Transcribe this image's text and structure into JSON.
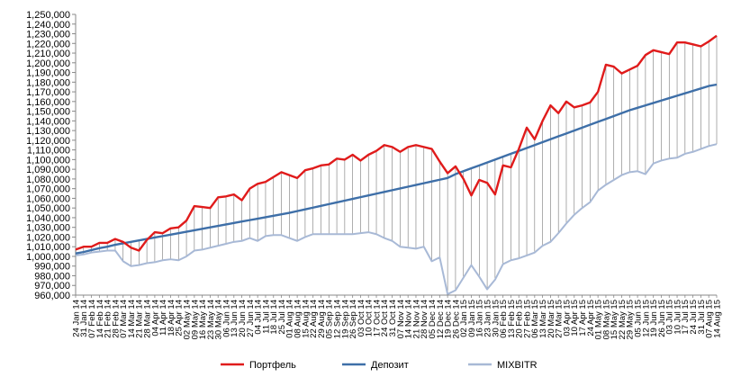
{
  "chart_data": {
    "type": "line",
    "title": "",
    "xlabel": "",
    "ylabel": "",
    "ylim": [
      960000,
      1250000
    ],
    "y_ticks": [
      "960,000",
      "970,000",
      "980,000",
      "990,000",
      "1,000,000",
      "1,010,000",
      "1,020,000",
      "1,030,000",
      "1,040,000",
      "1,050,000",
      "1,060,000",
      "1,070,000",
      "1,080,000",
      "1,090,000",
      "1,100,000",
      "1,110,000",
      "1,120,000",
      "1,130,000",
      "1,140,000",
      "1,150,000",
      "1,160,000",
      "1,170,000",
      "1,180,000",
      "1,190,000",
      "1,200,000",
      "1,210,000",
      "1,220,000",
      "1,230,000",
      "1,240,000",
      "1,250,000"
    ],
    "grid": "vertical drop lines",
    "legend_position": "bottom",
    "x": [
      "24 Jan 14",
      "31 Jan 14",
      "07 Feb 14",
      "14 Feb 14",
      "21 Feb 14",
      "28 Feb 14",
      "07 Mar 14",
      "14 Mar 14",
      "21 Mar 14",
      "28 Mar 14",
      "04 Apr 14",
      "11 Apr 14",
      "18 Apr 14",
      "25 Apr 14",
      "02 May 14",
      "09 May 14",
      "16 May 14",
      "23 May 14",
      "30 May 14",
      "06 Jun 14",
      "13 Jun 14",
      "20 Jun 14",
      "27 Jun 14",
      "04 Jul 14",
      "11 Jul 14",
      "18 Jul 14",
      "25 Jul 14",
      "01 Aug 14",
      "08 Aug 14",
      "15 Aug 14",
      "22 Aug 14",
      "29 Aug 14",
      "05 Sep 14",
      "12 Sep 14",
      "19 Sep 14",
      "26 Sep 14",
      "03 Oct 14",
      "10 Oct 14",
      "17 Oct 14",
      "24 Oct 14",
      "31 Oct 14",
      "07 Nov 14",
      "14 Nov 14",
      "21 Nov 14",
      "28 Nov 14",
      "05 Dec 14",
      "12 Dec 14",
      "19 Dec 14",
      "26 Dec 14",
      "02 Jan 15",
      "09 Jan 15",
      "16 Jan 15",
      "23 Jan 15",
      "30 Jan 15",
      "06 Feb 15",
      "13 Feb 15",
      "20 Feb 15",
      "27 Feb 15",
      "06 Mar 15",
      "13 Mar 15",
      "20 Mar 15",
      "27 Mar 15",
      "03 Apr 15",
      "10 Apr 15",
      "17 Apr 15",
      "24 Apr 15",
      "01 May 15",
      "08 May 15",
      "15 May 15",
      "22 May 15",
      "29 May 15",
      "05 Jun 15",
      "12 Jun 15",
      "19 Jun 15",
      "26 Jun 15",
      "03 Jul 15",
      "10 Jul 15",
      "17 Jul 15",
      "24 Jul 15",
      "31 Jul 15",
      "07 Aug 15",
      "14 Aug 15"
    ],
    "series": [
      {
        "name": "Портфель",
        "color": "#e01b1b",
        "values": [
          1007000,
          1010000,
          1010000,
          1014000,
          1014000,
          1018000,
          1015000,
          1009000,
          1006000,
          1017000,
          1025000,
          1024000,
          1029000,
          1030000,
          1037000,
          1052000,
          1051000,
          1050000,
          1061000,
          1062000,
          1064000,
          1058000,
          1070000,
          1075000,
          1077000,
          1082000,
          1087000,
          1084000,
          1081000,
          1089000,
          1091000,
          1094000,
          1095000,
          1101000,
          1100000,
          1105000,
          1099000,
          1105000,
          1109000,
          1115000,
          1113000,
          1108000,
          1113000,
          1115000,
          1113000,
          1111000,
          1098000,
          1086000,
          1093000,
          1080000,
          1063000,
          1079000,
          1076000,
          1064000,
          1094000,
          1092000,
          1111000,
          1133000,
          1121000,
          1140000,
          1156000,
          1148000,
          1160000,
          1154000,
          1156000,
          1159000,
          1170000,
          1198000,
          1196000,
          1189000,
          1193000,
          1197000,
          1208000,
          1213000,
          1211000,
          1209000,
          1221000,
          1221000,
          1219000,
          1217000,
          1222000,
          1228000
        ]
      },
      {
        "name": "Депозит",
        "color": "#3e6fa8",
        "values": [
          1003000,
          1004500,
          1006500,
          1008500,
          1010000,
          1012000,
          1013500,
          1015000,
          1016500,
          1018000,
          1019500,
          1021000,
          1022500,
          1024000,
          1025500,
          1027000,
          1028500,
          1030000,
          1031500,
          1033000,
          1034500,
          1036000,
          1037500,
          1039000,
          1040500,
          1042000,
          1043500,
          1045000,
          1046800,
          1048600,
          1050400,
          1052200,
          1054000,
          1055800,
          1057600,
          1059400,
          1061200,
          1063000,
          1064800,
          1066600,
          1068400,
          1070200,
          1072000,
          1073800,
          1075600,
          1077400,
          1079200,
          1081000,
          1085000,
          1088000,
          1091000,
          1094000,
          1097000,
          1100000,
          1103000,
          1106000,
          1109000,
          1112000,
          1115000,
          1118000,
          1121000,
          1124000,
          1127000,
          1130000,
          1133000,
          1136000,
          1139000,
          1142000,
          1145000,
          1148000,
          1151000,
          1153500,
          1156000,
          1158500,
          1161000,
          1163500,
          1166000,
          1168500,
          1171000,
          1173500,
          1176000,
          1177500
        ]
      },
      {
        "name": "MIXBITR",
        "color": "#a8b9d6",
        "values": [
          1001000,
          1002000,
          1004000,
          1005000,
          1006000,
          1006000,
          995000,
          990000,
          991000,
          993000,
          994000,
          996000,
          997000,
          996000,
          1000000,
          1006000,
          1007000,
          1009000,
          1011000,
          1013000,
          1015000,
          1016000,
          1019000,
          1016000,
          1021000,
          1022000,
          1022000,
          1019000,
          1016000,
          1020000,
          1023000,
          1023000,
          1023000,
          1023000,
          1023000,
          1023000,
          1024000,
          1025000,
          1023000,
          1019000,
          1016000,
          1010000,
          1009000,
          1008000,
          1010000,
          995000,
          999000,
          961000,
          965000,
          978000,
          991000,
          979000,
          966000,
          976000,
          992000,
          996000,
          998000,
          1001000,
          1004000,
          1011000,
          1015000,
          1024000,
          1034000,
          1043000,
          1050000,
          1056000,
          1068000,
          1074000,
          1079000,
          1084000,
          1087000,
          1088000,
          1085000,
          1096000,
          1099000,
          1101000,
          1102000,
          1106000,
          1108000,
          1111000,
          1114000,
          1116000
        ]
      }
    ]
  }
}
